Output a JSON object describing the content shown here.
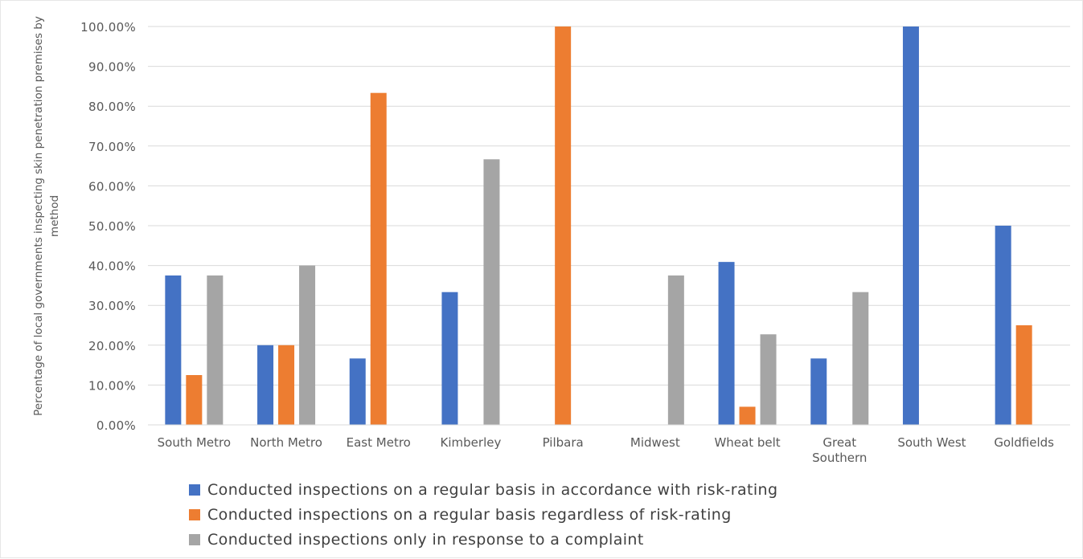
{
  "chart_data": {
    "type": "bar",
    "title": "",
    "xlabel": "",
    "ylabel": "Percentage of local governments inspecting skin penetration premises by method",
    "ylim": [
      0,
      100
    ],
    "ytick_labels": [
      "0.00%",
      "10.00%",
      "20.00%",
      "30.00%",
      "40.00%",
      "50.00%",
      "60.00%",
      "70.00%",
      "80.00%",
      "90.00%",
      "100.00%"
    ],
    "ytick_values": [
      0,
      10,
      20,
      30,
      40,
      50,
      60,
      70,
      80,
      90,
      100
    ],
    "grid": true,
    "legend_position": "bottom",
    "categories": [
      "South Metro",
      "North Metro",
      "East Metro",
      "Kimberley",
      "Pilbara",
      "Midwest",
      "Wheat belt",
      "Great Southern",
      "South West",
      "Goldfields"
    ],
    "series": [
      {
        "name": "Conducted inspections on a regular basis in accordance with risk-rating",
        "color": "#4472C4",
        "values": [
          37.5,
          20,
          16.67,
          33.33,
          0,
          0,
          40.9,
          16.67,
          100,
          50
        ]
      },
      {
        "name": "Conducted inspections on a regular basis regardless of risk-rating",
        "color": "#ED7D31",
        "values": [
          12.5,
          20,
          83.33,
          0,
          100,
          0,
          4.55,
          0,
          0,
          25
        ]
      },
      {
        "name": "Conducted inspections only in response to a complaint",
        "color": "#A5A5A5",
        "values": [
          37.5,
          40,
          0,
          66.67,
          0,
          37.5,
          22.73,
          33.33,
          0,
          0
        ]
      }
    ]
  }
}
